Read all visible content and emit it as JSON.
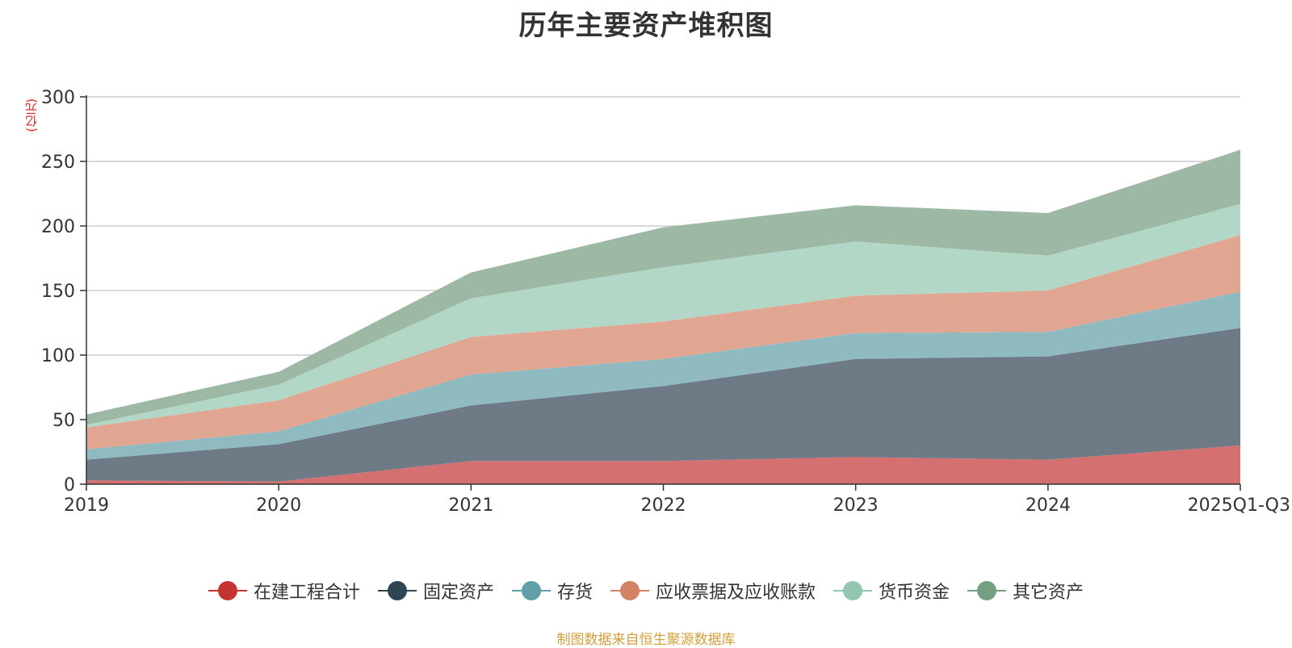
{
  "chart_data": {
    "type": "area",
    "stacked": true,
    "title": "历年主要资产堆积图",
    "ylabel": "(亿元)",
    "xlabel": "",
    "ylim": [
      0,
      300
    ],
    "yticks": [
      0,
      50,
      100,
      150,
      200,
      250,
      300
    ],
    "categories": [
      "2019",
      "2020",
      "2021",
      "2022",
      "2023",
      "2024",
      "2025Q1-Q3"
    ],
    "grid": true,
    "legend_position": "bottom",
    "series": [
      {
        "name": "在建工程合计",
        "color": "#c23531",
        "fill": "#d47170",
        "values": [
          3,
          2,
          18,
          18,
          21,
          19,
          30
        ]
      },
      {
        "name": "固定资产",
        "color": "#2f4554",
        "fill": "#6e7a85",
        "values": [
          16,
          29,
          43,
          58,
          76,
          80,
          91
        ]
      },
      {
        "name": "存货",
        "color": "#61a0a8",
        "fill": "#8fbac0",
        "values": [
          8,
          10,
          24,
          21,
          20,
          19,
          28
        ]
      },
      {
        "name": "应收票据及应收账款",
        "color": "#d48265",
        "fill": "#e0a692",
        "values": [
          17,
          24,
          29,
          29,
          29,
          32,
          44
        ]
      },
      {
        "name": "货币资金",
        "color": "#91c7ae",
        "fill": "#b2d7c6",
        "values": [
          2,
          12,
          30,
          42,
          42,
          27,
          24
        ]
      },
      {
        "name": "其它资产",
        "color": "#749f83",
        "fill": "#9db8a5",
        "values": [
          8,
          10,
          20,
          31,
          28,
          33,
          42
        ]
      }
    ]
  },
  "source": "制图数据来自恒生聚源数据库"
}
